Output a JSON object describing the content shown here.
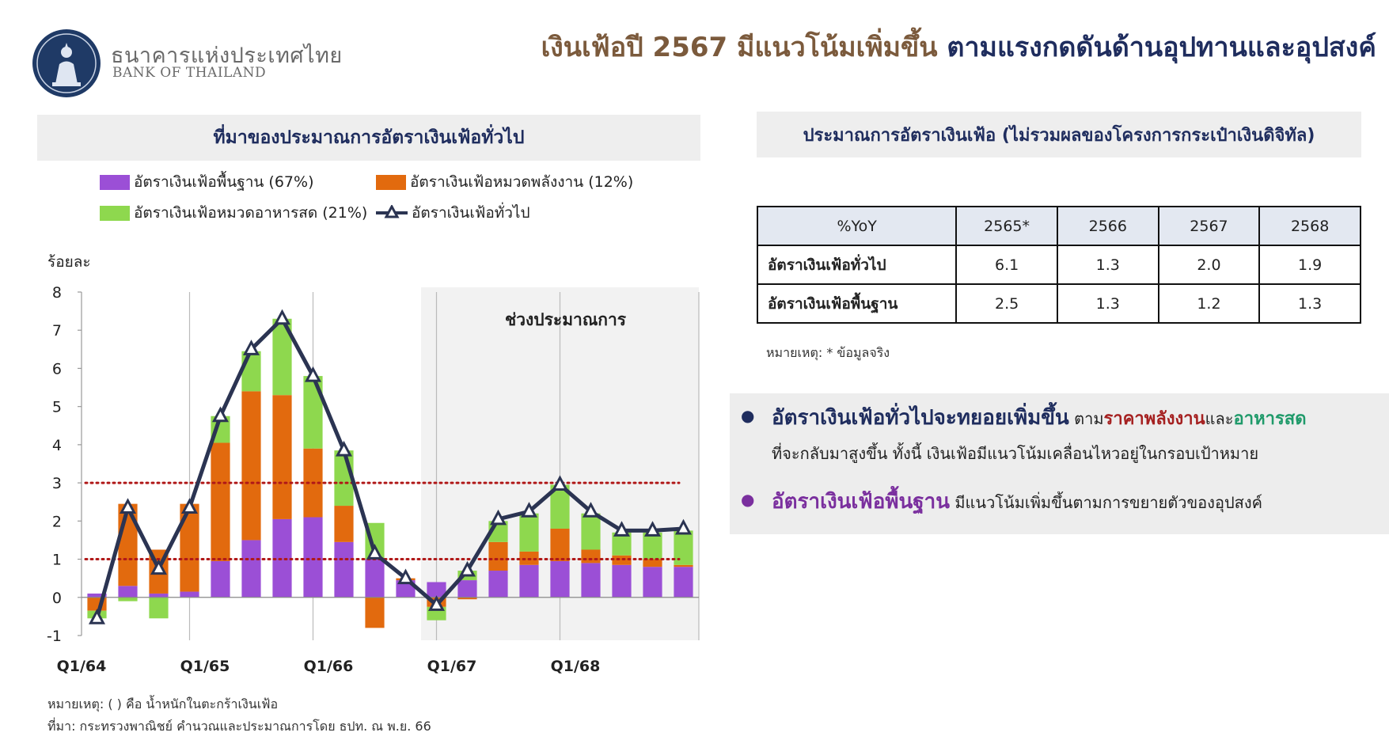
{
  "header": {
    "brand_th": "ธนาคารแห่งประเทศไทย",
    "brand_en": "BANK OF THAILAND",
    "title_part1": "เงินเฟ้อปี 2567 มีแนวโน้มเพิ่มขึ้น",
    "title_part2": "ตามแรงกดดันด้านอุปทานและอุปสงค์"
  },
  "left_panel": {
    "title": "ที่มาของประมาณการอัตราเงินเฟ้อทั่วไป",
    "ylabel": "ร้อยละ",
    "forecast_label": "ช่วงประมาณการ",
    "note": "หมายเหตุ: ( ) คือ น้ำหนักในตะกร้าเงินเฟ้อ",
    "source": "ที่มา: กระทรวงพาณิชย์ คำนวณและประมาณการโดย ธปท. ณ พ.ย. 66"
  },
  "chart_data": {
    "type": "bar",
    "stacked": true,
    "categories": [
      "Q1/64",
      "",
      "",
      "",
      "Q1/65",
      "",
      "",
      "",
      "Q1/66",
      "",
      "",
      "",
      "Q1/67",
      "",
      "",
      "",
      "Q1/68",
      "",
      "",
      ""
    ],
    "x_tick_labels": [
      "Q1/64",
      "Q1/65",
      "Q1/66",
      "Q1/67",
      "Q1/68"
    ],
    "series": [
      {
        "name": "อัตราเงินเฟ้อพื้นฐาน (67%)",
        "kind": "bar",
        "color": "#9b4fd6",
        "values": [
          0.1,
          0.3,
          0.1,
          0.15,
          0.95,
          1.5,
          2.05,
          2.1,
          1.45,
          1.0,
          0.45,
          0.4,
          0.45,
          0.7,
          0.85,
          0.95,
          0.9,
          0.85,
          0.8,
          0.8
        ]
      },
      {
        "name": "อัตราเงินเฟ้อหมวดพลังงาน (12%)",
        "kind": "bar",
        "color": "#e26a0e",
        "values": [
          -0.35,
          2.15,
          1.15,
          2.3,
          3.1,
          3.9,
          3.25,
          1.8,
          0.95,
          -0.8,
          0.05,
          -0.25,
          -0.05,
          0.75,
          0.35,
          0.85,
          0.35,
          0.25,
          0.2,
          0.05
        ]
      },
      {
        "name": "อัตราเงินเฟ้อหมวดอาหารสด (21%)",
        "kind": "bar",
        "color": "#8ed84e",
        "values": [
          -0.2,
          -0.1,
          -0.55,
          0.0,
          0.7,
          1.05,
          2.0,
          1.9,
          1.45,
          0.95,
          0.0,
          -0.35,
          0.25,
          0.55,
          1.0,
          1.15,
          0.95,
          0.6,
          0.7,
          0.9
        ]
      },
      {
        "name": "อัตราเงินเฟ้อทั่วไป",
        "kind": "line",
        "color": "#2b3452",
        "values": [
          -0.55,
          2.35,
          0.75,
          2.35,
          4.75,
          6.5,
          7.3,
          5.8,
          3.85,
          1.15,
          0.5,
          -0.2,
          0.7,
          2.05,
          2.25,
          2.95,
          2.25,
          1.75,
          1.75,
          1.8
        ]
      }
    ],
    "target_band": [
      1,
      3
    ],
    "forecast_start_index": 11,
    "ylim": [
      -1,
      8
    ],
    "yticks": [
      -1,
      0,
      1,
      2,
      3,
      4,
      5,
      6,
      7,
      8
    ],
    "ylabel": "ร้อยละ",
    "legend": "top"
  },
  "right_panel": {
    "title": "ประมาณการอัตราเงินเฟ้อ (ไม่รวมผลของโครงการกระเป๋าเงินดิจิทัล)",
    "table": {
      "headers": [
        "%YoY",
        "2565*",
        "2566",
        "2567",
        "2568"
      ],
      "rows": [
        {
          "label": "อัตราเงินเฟ้อทั่วไป",
          "values": [
            "6.1",
            "1.3",
            "2.0",
            "1.9"
          ]
        },
        {
          "label": "อัตราเงินเฟ้อพื้นฐาน",
          "values": [
            "2.5",
            "1.3",
            "1.2",
            "1.3"
          ]
        }
      ]
    },
    "table_note": "หมายเหตุ: * ข้อมูลจริง",
    "bullets": {
      "b1_strong": "อัตราเงินเฟ้อทั่วไปจะทยอยเพิ่มขึ้น",
      "b1_a": "ตาม",
      "b1_energy": "ราคาพลังงาน",
      "b1_and": "และ",
      "b1_food": "อาหารสด",
      "b1_line2": "ที่จะกลับมาสูงขึ้น  ทั้งนี้ เงินเฟ้อมีแนวโน้มเคลื่อนไหวอยู่ในกรอบเป้าหมาย",
      "b2_strong": "อัตราเงินเฟ้อพื้นฐาน",
      "b2_rest": "มีแนวโน้มเพิ่มขึ้นตามการขยายตัวของอุปสงค์"
    }
  }
}
